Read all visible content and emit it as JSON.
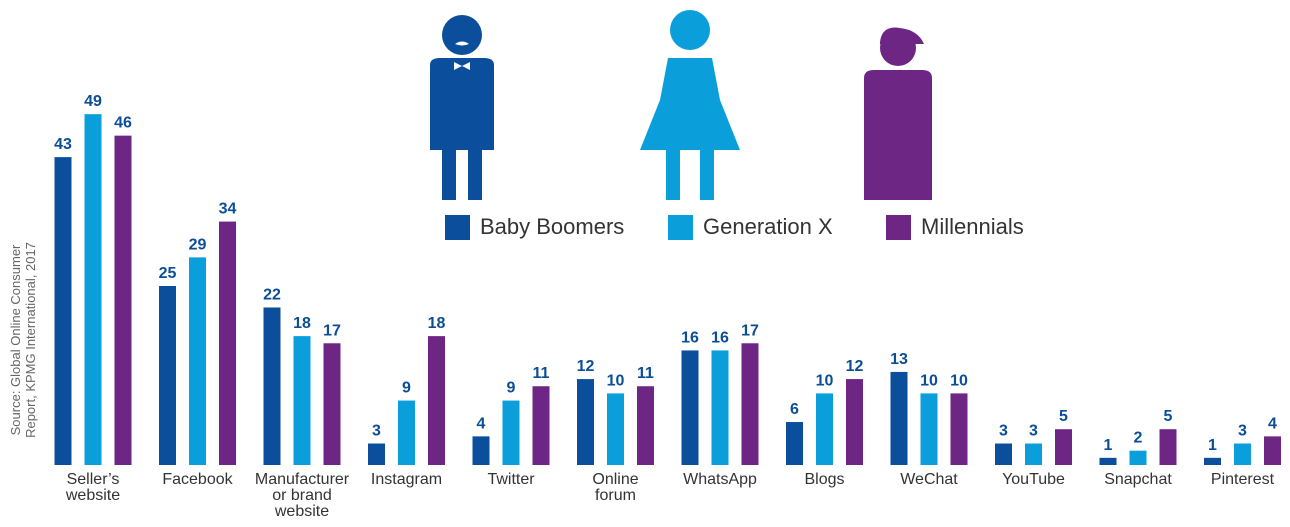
{
  "chart_data": {
    "type": "bar",
    "categories": [
      "Seller’s\nwebsite",
      "Facebook",
      "Manufacturer\nor brand\nwebsite",
      "Instagram",
      "Twitter",
      "Online\nforum",
      "WhatsApp",
      "Blogs",
      "WeChat",
      "YouTube",
      "Snapchat",
      "Pinterest"
    ],
    "series": [
      {
        "name": "Baby Boomers",
        "color": "#0b4e9b",
        "values": [
          43,
          25,
          22,
          3,
          4,
          12,
          16,
          6,
          13,
          3,
          1,
          1
        ]
      },
      {
        "name": "Generation X",
        "color": "#0a9fdb",
        "values": [
          49,
          29,
          18,
          9,
          9,
          10,
          16,
          10,
          10,
          3,
          2,
          3
        ]
      },
      {
        "name": "Millennials",
        "color": "#6e2685",
        "values": [
          46,
          34,
          17,
          18,
          11,
          11,
          17,
          12,
          10,
          5,
          5,
          4
        ]
      }
    ],
    "ylim": [
      0,
      50
    ],
    "source": [
      "Source: Global Online Consumer",
      "Report, KPMG International, 2017"
    ]
  }
}
